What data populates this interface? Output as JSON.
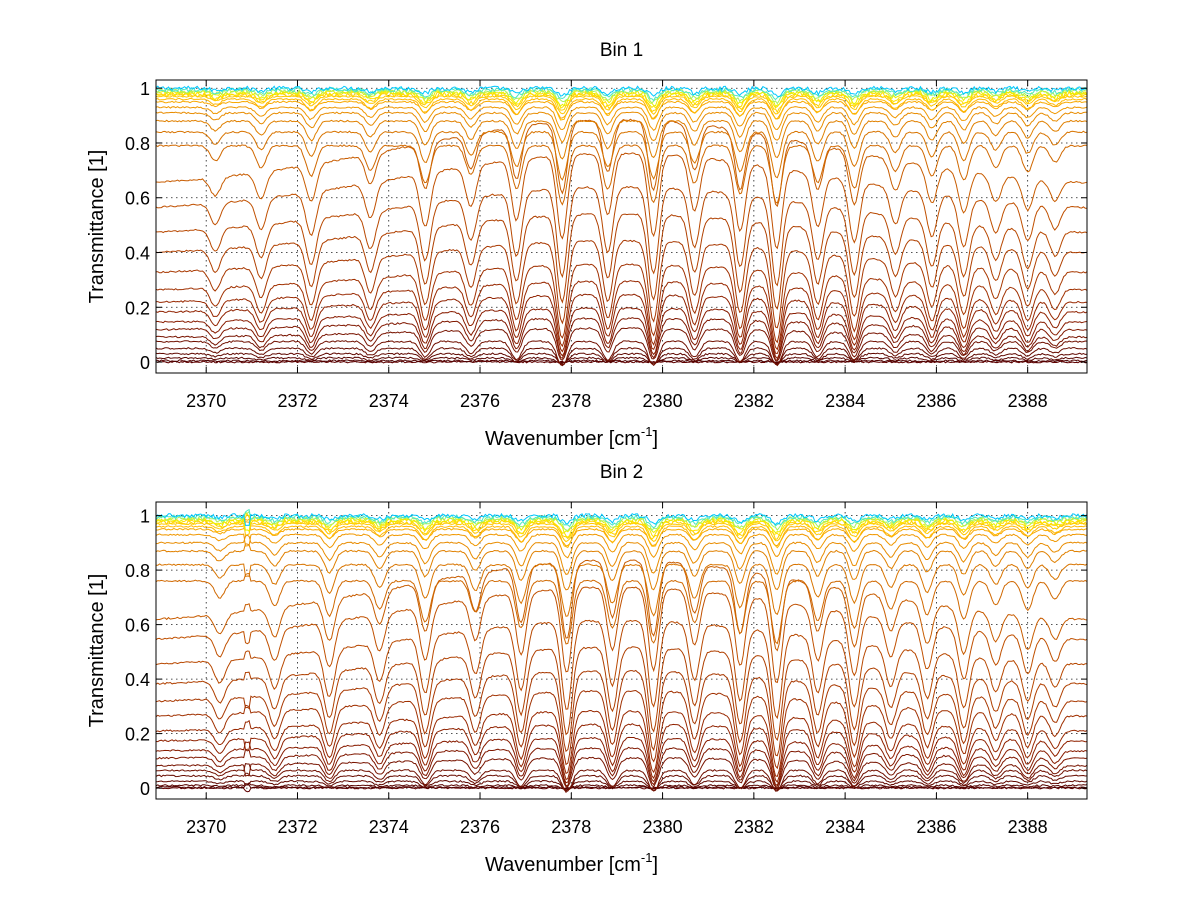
{
  "chart_data": [
    {
      "type": "line",
      "title": "Bin 1",
      "xlabel": "Wavenumber [cm",
      "xlabel_exponent": "-1",
      "xlabel_suffix": "]",
      "ylabel": "Transmittance [1]",
      "xlim": [
        2368.9,
        2389.3
      ],
      "ylim": [
        -0.04,
        1.03
      ],
      "xticks": [
        2370,
        2372,
        2374,
        2376,
        2378,
        2380,
        2382,
        2384,
        2386,
        2388
      ],
      "yticks": [
        0,
        0.2,
        0.4,
        0.6,
        0.8,
        1
      ],
      "ytick_labels": [
        "0",
        "0.2",
        "0.4",
        "0.6",
        "0.8",
        "1"
      ],
      "grid": true,
      "absorption_lines": [
        2370.2,
        2371.2,
        2372.3,
        2373.6,
        2374.8,
        2375.8,
        2376.8,
        2377.8,
        2378.8,
        2379.8,
        2380.7,
        2381.7,
        2382.5,
        2383.4,
        2384.2,
        2385.1,
        2385.9,
        2386.6,
        2387.3,
        2388.0,
        2388.6
      ],
      "series_baselines": [
        1.0,
        0.995,
        0.99,
        0.985,
        0.98,
        0.975,
        0.97,
        0.96,
        0.95,
        0.93,
        0.91,
        0.88,
        0.84,
        0.79,
        0.72,
        0.62,
        0.52,
        0.44,
        0.36,
        0.29,
        0.24,
        0.2,
        0.16,
        0.13,
        0.1,
        0.075,
        0.05,
        0.03,
        0.015,
        0.005,
        0.0
      ],
      "colors": [
        "#00c8ff",
        "#4ee8c0",
        "#a8f060",
        "#e8f000",
        "#ffe000",
        "#ffd000",
        "#ffc800",
        "#ffb800",
        "#f8a800",
        "#f09800",
        "#e88c00",
        "#e08000",
        "#d87400",
        "#d06800",
        "#c85c00",
        "#c05000",
        "#b84800",
        "#b04000",
        "#a83800",
        "#a03000",
        "#982800",
        "#902200",
        "#881c00",
        "#801800",
        "#781400",
        "#701000",
        "#680c00",
        "#600800",
        "#580400",
        "#500000",
        "#600000"
      ]
    },
    {
      "type": "line",
      "title": "Bin 2",
      "xlabel": "Wavenumber [cm",
      "xlabel_exponent": "-1",
      "xlabel_suffix": "]",
      "ylabel": "Transmittance [1]",
      "xlim": [
        2368.9,
        2389.3
      ],
      "ylim": [
        -0.04,
        1.05
      ],
      "xticks": [
        2370,
        2372,
        2374,
        2376,
        2378,
        2380,
        2382,
        2384,
        2386,
        2388
      ],
      "yticks": [
        0,
        0.2,
        0.4,
        0.6,
        0.8,
        1
      ],
      "ytick_labels": [
        "0",
        "0.2",
        "0.4",
        "0.6",
        "0.8",
        "1"
      ],
      "grid": true,
      "absorption_lines": [
        2370.3,
        2371.5,
        2372.7,
        2373.8,
        2374.8,
        2375.9,
        2376.9,
        2377.9,
        2378.9,
        2379.8,
        2380.7,
        2381.7,
        2382.5,
        2383.4,
        2384.2,
        2385.0,
        2385.8,
        2386.6,
        2387.3,
        2388.0,
        2388.6
      ],
      "spike_position": 2370.9,
      "series_baselines": [
        1.0,
        0.995,
        0.99,
        0.985,
        0.98,
        0.975,
        0.97,
        0.96,
        0.95,
        0.93,
        0.9,
        0.87,
        0.82,
        0.76,
        0.68,
        0.6,
        0.5,
        0.42,
        0.35,
        0.29,
        0.23,
        0.19,
        0.15,
        0.12,
        0.09,
        0.065,
        0.045,
        0.025,
        0.01,
        0.003,
        0.0
      ],
      "colors": [
        "#00c8ff",
        "#4ee8c0",
        "#a8f060",
        "#e8f000",
        "#ffe000",
        "#ffd000",
        "#ffc800",
        "#ffb800",
        "#f8a800",
        "#f09800",
        "#e88c00",
        "#e08000",
        "#d87400",
        "#d06800",
        "#c85c00",
        "#c05000",
        "#b84800",
        "#b04000",
        "#a83800",
        "#a03000",
        "#982800",
        "#902200",
        "#881c00",
        "#801800",
        "#781400",
        "#701000",
        "#680c00",
        "#600800",
        "#580400",
        "#500000",
        "#600000"
      ]
    }
  ]
}
